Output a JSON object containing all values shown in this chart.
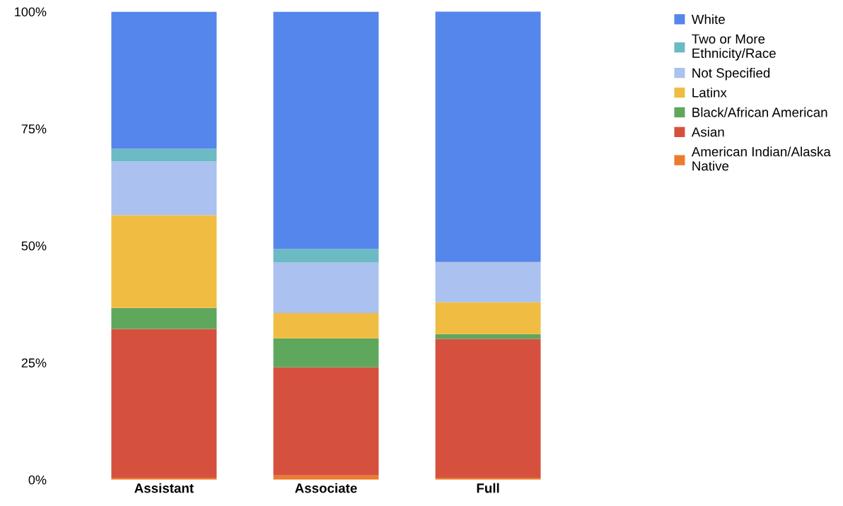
{
  "chart_data": {
    "type": "bar",
    "stacked": true,
    "categories": [
      "Assistant",
      "Associate",
      "Full"
    ],
    "series": [
      {
        "name": "American Indian/Alaska\nNative",
        "color": "#ec7b2e",
        "values": [
          0.4,
          0.9,
          0.4
        ]
      },
      {
        "name": "Asian",
        "color": "#d5513e",
        "values": [
          31.8,
          23.1,
          29.7
        ]
      },
      {
        "name": "Black/African American",
        "color": "#5ea75c",
        "values": [
          4.5,
          6.2,
          1.0
        ]
      },
      {
        "name": "Latinx",
        "color": "#f0bd42",
        "values": [
          19.8,
          5.4,
          6.8
        ]
      },
      {
        "name": "Not Specified",
        "color": "#abc1ef",
        "values": [
          11.5,
          10.8,
          8.6
        ]
      },
      {
        "name": "Two or More\nEthnicity/Race",
        "color": "#6cbac4",
        "values": [
          2.7,
          2.9,
          0.0
        ]
      },
      {
        "name": "White",
        "color": "#5586eb",
        "values": [
          29.3,
          50.7,
          53.6
        ]
      }
    ],
    "ylim": [
      0,
      100
    ],
    "yticks": [
      {
        "value": 0,
        "label": "0%"
      },
      {
        "value": 25,
        "label": "25%"
      },
      {
        "value": 50,
        "label": "50%"
      },
      {
        "value": 75,
        "label": "75%"
      },
      {
        "value": 100,
        "label": "100%"
      }
    ],
    "legend": "top right",
    "grid": false
  }
}
